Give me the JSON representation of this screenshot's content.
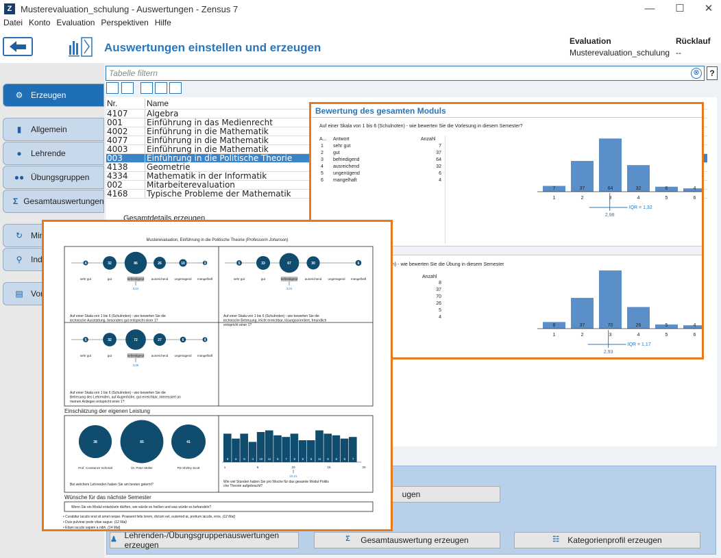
{
  "window": {
    "title": "Musterevaluation_schulung - Auswertungen - Zensus 7",
    "app_icon": "Z",
    "min": "—",
    "max": "☐",
    "close": "✕"
  },
  "menu": [
    "Datei",
    "Konto",
    "Evaluation",
    "Perspektiven",
    "Hilfe"
  ],
  "header": {
    "title": "Auswertungen einstellen und erzeugen",
    "eval_label": "Evaluation",
    "eval_value": "Musterevaluation_schulung",
    "return_label": "Rücklauf",
    "return_value": "--"
  },
  "sidebar": {
    "erzeugen": "Erzeugen",
    "allgemein": "Allgemein",
    "lehrende": "Lehrende",
    "uebungsgruppen": "Übungsgruppen",
    "gesamt": "Gesamtauswertungen",
    "min": "Min",
    "ind": "Ind",
    "vor": "Vor"
  },
  "filter": {
    "placeholder": "Tabelle filtern",
    "help": "?",
    "clear": "⊗"
  },
  "table": {
    "col_nr": "Nr.",
    "col_name": "Name",
    "rows": [
      {
        "nr": "4107",
        "name": "Algebra"
      },
      {
        "nr": "001",
        "name": "Einführung in das Medienrecht"
      },
      {
        "nr": "4002",
        "name": "Einführung in die Mathematik"
      },
      {
        "nr": "4077",
        "name": "Einführung in die Mathematik"
      },
      {
        "nr": "4003",
        "name": "Einführung in die Mathematik"
      },
      {
        "nr": "003",
        "name": "Einführung in die Politische Theorie"
      },
      {
        "nr": "4138",
        "name": "Geometrie"
      },
      {
        "nr": "4334",
        "name": "Mathematik in der Informatik"
      },
      {
        "nr": "002",
        "name": "Mitarbeiterevaluation"
      },
      {
        "nr": "4168",
        "name": "Typische Probleme der Mathematik"
      }
    ]
  },
  "popup_behind_label": "Gesamtdetails erzeugen",
  "buttons": {
    "lehrenden": "Lehrenden-/Übungsgruppenauswertungen erzeugen",
    "gesamt": "Gesamtauswertung erzeugen",
    "kategorie": "Kategorienprofil erzeugen",
    "uebungsgruppen_partial": "ugen"
  },
  "popup1": {
    "title": "Bewertung des gesamten Moduls",
    "q1": "Auf einer Skala von 1 bis 6 (Schulnoten) - wie bewerten Sie die Vorlesung in diesem Semester?",
    "q2_partial": "n) - wie bewerten Sie die Übung in diesem Semester",
    "col_a": "A...",
    "col_antwort": "Antwort",
    "col_anzahl": "Anzahl",
    "answers": [
      {
        "n": "1",
        "label": "sehr gut",
        "count": "7"
      },
      {
        "n": "2",
        "label": "gut",
        "count": "37"
      },
      {
        "n": "3",
        "label": "befriedigend",
        "count": "64"
      },
      {
        "n": "4",
        "label": "ausreichend",
        "count": "32"
      },
      {
        "n": "5",
        "label": "ungenügend",
        "count": "6"
      },
      {
        "n": "6",
        "label": "mangelhaft",
        "count": "4"
      }
    ],
    "counts2": [
      "8",
      "37",
      "70",
      "26",
      "5",
      "4"
    ],
    "mean1": "2,98",
    "iqr1": "IQR = 1,32",
    "mean2": "2,93",
    "iqr2": "IQR = 1,17"
  },
  "popup2": {
    "title": "Musterevaluation, Einführung in die Politische Theorie",
    "title_italic": "(Professorin Johanson)",
    "labels": [
      "sehr gut",
      "gut",
      "befriedigend",
      "ausreichend",
      "ungenügend",
      "mangelhaft"
    ],
    "p1_values": [
      "4",
      "32",
      "86",
      "26",
      "10",
      "3"
    ],
    "p1_mean": "3,12",
    "p1_q": "Auf einer Skala von 1 bis 6 (Schulnoten) - wie bewerten Sie die technische Ausstattung,  besonders gut entspricht einer 1?",
    "p2_values": [
      "5",
      "33",
      "67",
      "30",
      "",
      "6"
    ],
    "p2_mean": "3,01",
    "p2_q": "Auf einer Skala von 1 bis 6 (Schulnoten) - wie bewerten Sie die technische Betreuung, leicht erreichbar, lösungsorientiert, freundlich entspricht einer 1?",
    "p3_values": [
      "5",
      "32",
      "72",
      "27",
      "6",
      "4"
    ],
    "p3_mean": "3,05",
    "p3_q": "Auf einer Skala von 1 bis 6 (Schulnoten) - wie bewerten Sie die Betreuung des Lehrenden, auf Augenhöhe, gut erreichbar, interessiert an meinen Anliegen entspricht einer 1?",
    "section1": "Einschätzung der eigenen Leistung",
    "lecturers": [
      {
        "name": "Prof. Constanze Schmidt",
        "value": "38"
      },
      {
        "name": "Dr. Peter Müller",
        "value": "65"
      },
      {
        "name": "PD Shirley Scott",
        "value": "41"
      }
    ],
    "lect_q": "Bei welchem Lehrenden haben Sie am besten gelernt?",
    "hist_values": [
      "9",
      "6",
      "9",
      "4",
      "10",
      "11",
      "8",
      "7",
      "9",
      "5",
      "5",
      "11",
      "9",
      "8",
      "6",
      "7"
    ],
    "hist_ticks": [
      "1",
      "5",
      "10",
      "15",
      "20"
    ],
    "hist_mean": "10,21",
    "hist_q": "Wie viel Stunden haben Sie pro Woche für das gesamte Modul Politische Theorie aufgebracht?",
    "section2": "Wünsche für das nächste Semester",
    "wish_q": "Wenn Sie ein Modul entwickeln dürften, wie würde es heißen und was würde es behandeln?",
    "wishes": [
      {
        "text": "Curabitur iaculis erat sit amet neque. Praesent felis lorem, dictum vel, euismod at, pretium iaculis, eros.",
        "tag": "(12 Mal)"
      },
      {
        "text": "Duis pulvinar pede vitae augue.",
        "tag": "(12 Mal)"
      },
      {
        "text": "Etiam iaculis sapien a nibh.",
        "tag": "(14 Mal)"
      }
    ]
  },
  "colors": {
    "accent": "#2a76b8",
    "orange": "#e8791a",
    "bar": "#5b8fc9",
    "navy": "#0f4c6e"
  }
}
